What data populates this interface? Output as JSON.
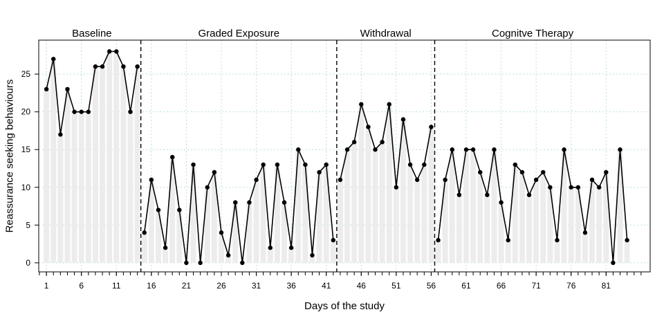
{
  "chart_data": {
    "type": "line",
    "xlabel": "Days of the study",
    "ylabel": "Reassurance seeking behaviours",
    "xlim": [
      -0.1,
      87.3
    ],
    "ylim": [
      -1.2,
      29.5
    ],
    "x_ticks": [
      1,
      6,
      11,
      16,
      21,
      26,
      31,
      36,
      41,
      46,
      51,
      56,
      61,
      66,
      71,
      76,
      81
    ],
    "x_tick_labels": [
      "1",
      "6",
      "11",
      "16",
      "21",
      "26",
      "31",
      "36",
      "41",
      "46",
      "51",
      "56",
      "61",
      "66",
      "71",
      "76",
      "81"
    ],
    "y_ticks": [
      0,
      5,
      10,
      15,
      20,
      25
    ],
    "y_tick_labels": [
      "0",
      "5",
      "10",
      "15",
      "20",
      "25"
    ],
    "grid": true,
    "phases": [
      {
        "label": "Baseline",
        "days": [
          1,
          2,
          3,
          4,
          5,
          6,
          7,
          8,
          9,
          10,
          11,
          12,
          13,
          14
        ],
        "values": [
          23,
          27,
          17,
          23,
          20,
          20,
          20,
          26,
          26,
          28,
          28,
          26,
          20,
          26
        ]
      },
      {
        "label": "Graded Exposure",
        "days": [
          15,
          16,
          17,
          18,
          19,
          20,
          21,
          22,
          23,
          24,
          25,
          26,
          27,
          28,
          29,
          30,
          31,
          32,
          33,
          34,
          35,
          36,
          37,
          38,
          39,
          40,
          41,
          42
        ],
        "values": [
          4,
          11,
          7,
          2,
          14,
          7,
          0,
          13,
          0,
          10,
          12,
          4,
          1,
          8,
          0,
          8,
          11,
          13,
          2,
          13,
          8,
          2,
          15,
          13,
          1,
          12,
          13,
          3
        ]
      },
      {
        "label": "Withdrawal",
        "days": [
          43,
          44,
          45,
          46,
          47,
          48,
          49,
          50,
          51,
          52,
          53,
          54,
          55,
          56
        ],
        "values": [
          11,
          15,
          16,
          21,
          18,
          15,
          16,
          21,
          10,
          19,
          13,
          11,
          13,
          18
        ]
      },
      {
        "label": "Cognitve Therapy",
        "days": [
          57,
          58,
          59,
          60,
          61,
          62,
          63,
          64,
          65,
          66,
          67,
          68,
          69,
          70,
          71,
          72,
          73,
          74,
          75,
          76,
          77,
          78,
          79,
          80,
          81,
          82,
          83,
          84
        ],
        "values": [
          3,
          11,
          15,
          9,
          15,
          15,
          12,
          9,
          15,
          8,
          3,
          13,
          12,
          9,
          11,
          12,
          10,
          3,
          15,
          10,
          10,
          4,
          11,
          10,
          12,
          0,
          15,
          3
        ]
      }
    ],
    "phase_boundaries": [
      14.5,
      42.5,
      56.5
    ],
    "colors": {
      "line": "#000000",
      "fill": "#ececec",
      "grid": "#b9dede",
      "frame": "#000000"
    }
  }
}
